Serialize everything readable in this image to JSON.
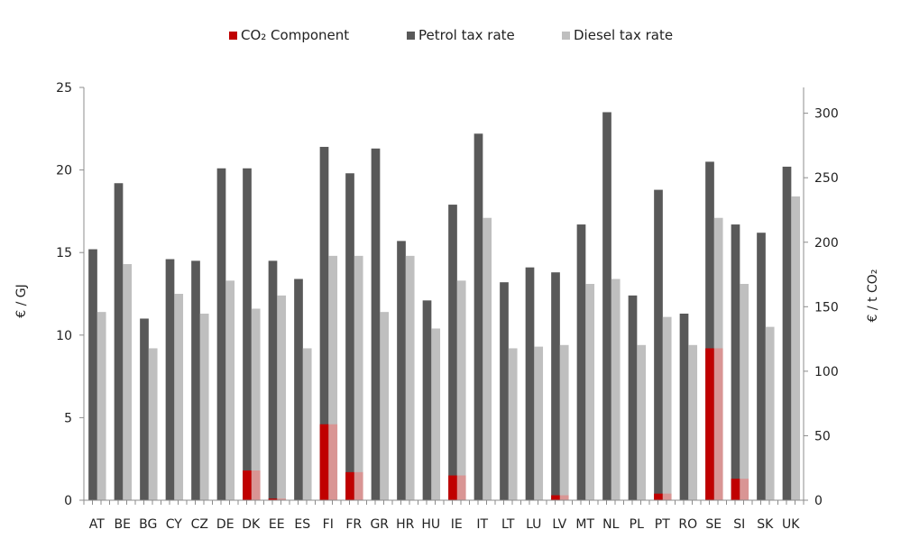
{
  "chart_data": {
    "type": "bar",
    "title": "",
    "legend": [
      {
        "name": "CO₂ Component",
        "color": "#c00000"
      },
      {
        "name": "Petrol tax rate",
        "color": "#595959"
      },
      {
        "name": "Diesel tax rate",
        "color": "#bfbfbf"
      }
    ],
    "legend_position": "top",
    "categories": [
      "AT",
      "BE",
      "BG",
      "CY",
      "CZ",
      "DE",
      "DK",
      "EE",
      "ES",
      "FI",
      "FR",
      "GR",
      "HR",
      "HU",
      "IE",
      "IT",
      "LT",
      "LU",
      "LV",
      "MT",
      "NL",
      "PL",
      "PT",
      "RO",
      "SE",
      "SI",
      "SK",
      "UK"
    ],
    "series": [
      {
        "name": "Petrol tax rate",
        "values": [
          15.2,
          19.2,
          11.0,
          14.6,
          14.5,
          20.1,
          20.1,
          14.5,
          13.4,
          21.4,
          19.8,
          21.3,
          15.7,
          12.1,
          17.9,
          22.2,
          13.2,
          14.1,
          13.8,
          16.7,
          23.5,
          12.4,
          18.8,
          11.3,
          20.5,
          16.7,
          16.2,
          20.2
        ]
      },
      {
        "name": "Diesel tax rate",
        "values": [
          11.4,
          14.3,
          9.2,
          12.5,
          11.3,
          13.3,
          11.6,
          12.4,
          9.2,
          14.8,
          14.8,
          11.4,
          14.8,
          10.4,
          13.3,
          17.1,
          9.2,
          9.3,
          9.4,
          13.1,
          13.4,
          9.4,
          11.1,
          9.4,
          17.1,
          13.1,
          10.5,
          18.4
        ]
      },
      {
        "name": "CO₂ Component",
        "values": [
          0,
          0,
          0,
          0,
          0,
          0,
          1.8,
          0.1,
          0,
          4.6,
          1.7,
          0,
          0,
          0,
          1.5,
          0,
          0,
          0,
          0.3,
          0,
          0,
          0,
          0.4,
          0,
          9.2,
          1.3,
          0,
          0
        ]
      }
    ],
    "xlabel": "",
    "ylabel": "€ / GJ",
    "ylim": [
      0,
      25
    ],
    "yticks": [
      0,
      5,
      10,
      15,
      20,
      25
    ],
    "y2label": "€ / t CO₂",
    "y2lim": [
      0,
      320
    ],
    "y2ticks": [
      0,
      50,
      100,
      150,
      200,
      250,
      300
    ],
    "grid": false
  },
  "labels": {
    "legend_co2": "CO₂ Component",
    "legend_petrol": "Petrol tax rate",
    "legend_diesel": "Diesel tax rate",
    "ylabel_left": "€ / GJ",
    "ylabel_right": "€ / t CO₂"
  }
}
